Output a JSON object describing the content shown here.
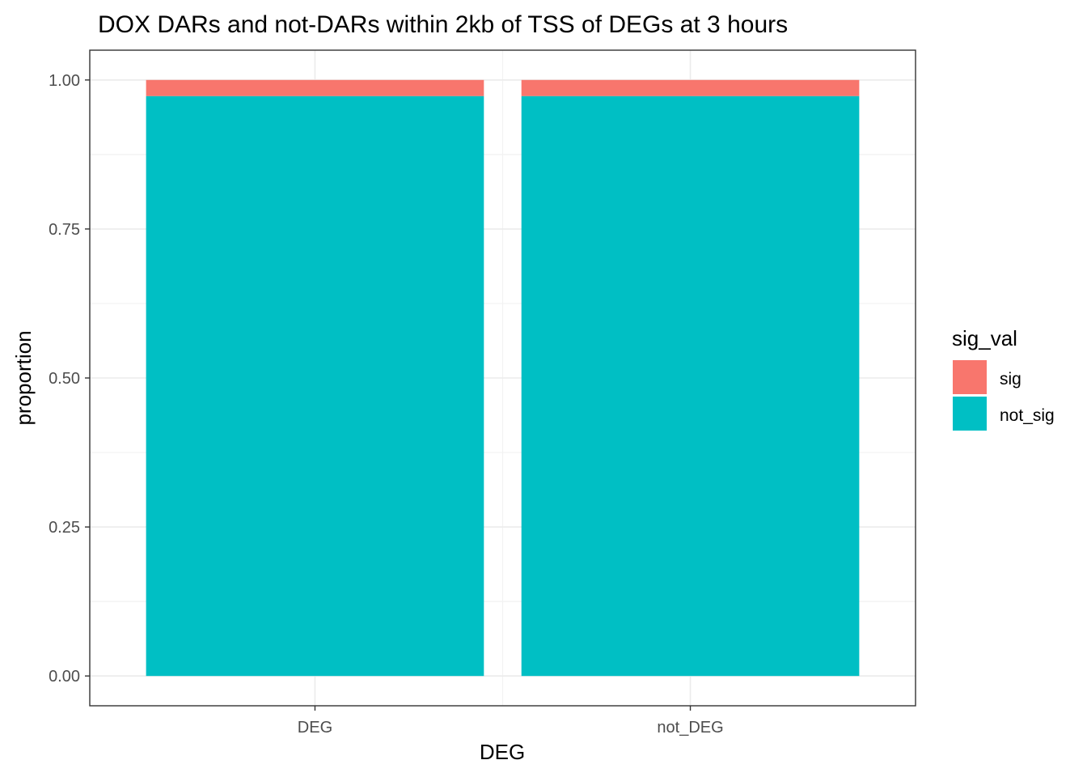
{
  "chart_data": {
    "type": "bar",
    "stacked": true,
    "title": "DOX DARs and not-DARs within 2kb of TSS of DEGs at 3 hours",
    "xlabel": "DEG",
    "ylabel": "proportion",
    "categories": [
      "DEG",
      "not_DEG"
    ],
    "series": [
      {
        "name": "sig",
        "values": [
          0.027,
          0.027
        ],
        "color": "#F8766D"
      },
      {
        "name": "not_sig",
        "values": [
          0.973,
          0.973
        ],
        "color": "#00BFC4"
      }
    ],
    "ylim": [
      -0.05,
      1.05
    ],
    "yticks": [
      0,
      0.25,
      0.5,
      0.75,
      1
    ],
    "ytick_labels": [
      "0.00",
      "0.25",
      "0.50",
      "0.75",
      "1.00"
    ],
    "legend": {
      "title": "sig_val",
      "position": "right"
    },
    "grid": true
  }
}
